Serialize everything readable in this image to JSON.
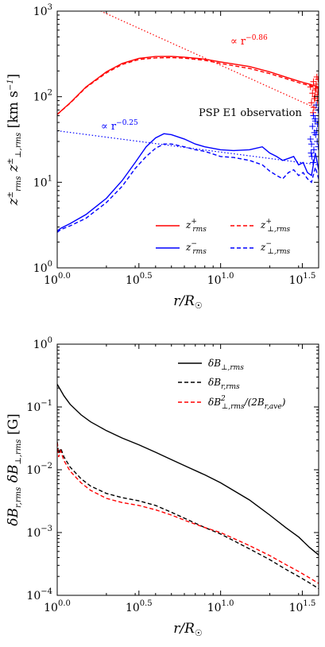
{
  "chart_data": [
    {
      "type": "line",
      "xscale": "log",
      "yscale": "log",
      "xlim": [
        1.0,
        39.8
      ],
      "ylim": [
        1,
        1000
      ],
      "xticks": [
        {
          "value": 1.0,
          "label": "10^0.0"
        },
        {
          "value": 3.162,
          "label": "10^0.5"
        },
        {
          "value": 10.0,
          "label": "10^1.0"
        },
        {
          "value": 31.62,
          "label": "10^1.5"
        }
      ],
      "yticks": [
        {
          "value": 1,
          "label": "10^0"
        },
        {
          "value": 10,
          "label": "10^1"
        },
        {
          "value": 100,
          "label": "10^2"
        },
        {
          "value": 1000,
          "label": "10^3"
        }
      ],
      "xlabel": "r/R☉",
      "ylabel": "z±rms  z±⊥,rms [km s⁻¹]",
      "annotations": [
        {
          "text": "∝ r^−0.86",
          "color": "#ff0000"
        },
        {
          "text": "∝ r^−0.25",
          "color": "#0000ff"
        },
        {
          "text": "PSP E1 observation",
          "color": "#000000"
        }
      ],
      "legend": {
        "placement": "lower-right",
        "entries": [
          {
            "label": "z+rms",
            "color": "#ff0000",
            "style": "solid"
          },
          {
            "label": "z−rms",
            "color": "#0000ff",
            "style": "solid"
          },
          {
            "label": "z+⊥,rms",
            "color": "#ff0000",
            "style": "dashed"
          },
          {
            "label": "z−⊥,rms",
            "color": "#0000ff",
            "style": "dashed"
          }
        ]
      },
      "series": [
        {
          "key": "zp_rms",
          "color": "#ff0000",
          "style": "solid",
          "x": [
            1.0,
            1.2,
            1.5,
            2.0,
            2.5,
            3.16,
            4.0,
            5.0,
            6.0,
            8.0,
            10.0,
            15.0,
            20.0,
            25.0,
            30.0,
            35.0,
            39.8
          ],
          "y": [
            62,
            85,
            130,
            195,
            245,
            280,
            295,
            296,
            290,
            275,
            255,
            225,
            195,
            170,
            152,
            140,
            130
          ]
        },
        {
          "key": "zp_perp_rms",
          "color": "#ff0000",
          "style": "dashed",
          "x": [
            1.0,
            1.2,
            1.5,
            2.0,
            2.5,
            3.16,
            4.0,
            5.0,
            6.0,
            8.0,
            10.0,
            15.0,
            20.0,
            25.0,
            30.0,
            35.0,
            39.8
          ],
          "y": [
            62,
            84,
            128,
            190,
            238,
            272,
            284,
            286,
            282,
            266,
            245,
            214,
            186,
            163,
            146,
            135,
            126
          ]
        },
        {
          "key": "zm_rms",
          "color": "#0000ff",
          "style": "solid",
          "x": [
            1.0,
            1.05,
            1.2,
            1.5,
            2.0,
            2.5,
            3.0,
            3.5,
            4.0,
            4.5,
            5.0,
            6.0,
            7.0,
            8.0,
            10.0,
            12.0,
            15.0,
            18.0,
            20.0,
            22.0,
            24.0,
            26.0,
            28.0,
            30.0,
            32.0,
            34.0,
            36.0,
            38.0,
            39.8
          ],
          "y": [
            2.7,
            2.9,
            3.3,
            4.2,
            6.5,
            10.5,
            17.0,
            26.0,
            33.0,
            37.0,
            36.0,
            32.0,
            28.0,
            26.0,
            24.0,
            23.5,
            24.0,
            26.0,
            22.0,
            20.0,
            18.0,
            19.0,
            20.0,
            16.0,
            17.0,
            13.0,
            12.0,
            22.0,
            14.0
          ]
        },
        {
          "key": "zm_perp_rms",
          "color": "#0000ff",
          "style": "dashed",
          "x": [
            1.0,
            1.05,
            1.2,
            1.5,
            2.0,
            2.5,
            3.0,
            3.5,
            4.0,
            4.5,
            5.0,
            6.0,
            7.0,
            8.0,
            10.0,
            12.0,
            15.0,
            18.0,
            20.0,
            22.0,
            24.0,
            26.0,
            28.0,
            30.0,
            32.0,
            34.0,
            36.0,
            38.0,
            39.8
          ],
          "y": [
            2.6,
            2.8,
            3.1,
            3.8,
            5.8,
            9.0,
            14.5,
            20.0,
            25.0,
            28.0,
            28.0,
            26.0,
            24.0,
            23.0,
            20.0,
            19.5,
            18.0,
            16.0,
            13.5,
            12.0,
            11.0,
            13.0,
            14.0,
            12.0,
            13.0,
            11.0,
            10.0,
            15.0,
            11.0
          ]
        },
        {
          "key": "fit_plus",
          "color": "#ff0000",
          "style": "dotted",
          "x": [
            1.0,
            39.8
          ],
          "y": [
            1700,
            71
          ]
        },
        {
          "key": "fit_minus",
          "color": "#0000ff",
          "style": "dotted",
          "x": [
            1.0,
            39.8
          ],
          "y": [
            40,
            16
          ]
        }
      ],
      "observations": [
        {
          "color": "#ff0000",
          "marker": "+",
          "x": [
            35.5,
            36.5,
            37.0,
            37.5,
            38.0,
            38.5,
            39.0,
            39.5,
            36.0,
            37.2,
            38.2,
            39.2,
            38.8,
            37.8,
            36.8,
            39.6
          ],
          "y": [
            130,
            110,
            150,
            95,
            120,
            140,
            105,
            160,
            85,
            75,
            125,
            90,
            170,
            100,
            65,
            115
          ]
        },
        {
          "color": "#0000ff",
          "marker": "+",
          "x": [
            35.5,
            36.0,
            36.5,
            37.0,
            37.5,
            38.0,
            38.5,
            39.0,
            39.5,
            36.2,
            37.2,
            38.2,
            39.2,
            36.8,
            37.8,
            38.8,
            39.6,
            35.8
          ],
          "y": [
            32,
            28,
            45,
            60,
            38,
            52,
            80,
            30,
            70,
            20,
            24,
            36,
            48,
            17,
            55,
            40,
            26,
            22
          ]
        }
      ]
    },
    {
      "type": "line",
      "xscale": "log",
      "yscale": "log",
      "xlim": [
        1.0,
        39.8
      ],
      "ylim": [
        0.0001,
        1
      ],
      "xticks": [
        {
          "value": 1.0,
          "label": "10^0.0"
        },
        {
          "value": 3.162,
          "label": "10^0.5"
        },
        {
          "value": 10.0,
          "label": "10^1.0"
        },
        {
          "value": 31.62,
          "label": "10^1.5"
        }
      ],
      "yticks": [
        {
          "value": 0.0001,
          "label": "10^−4"
        },
        {
          "value": 0.001,
          "label": "10^−3"
        },
        {
          "value": 0.01,
          "label": "10^−2"
        },
        {
          "value": 0.1,
          "label": "10^−1"
        },
        {
          "value": 1,
          "label": "10^0"
        }
      ],
      "xlabel": "r/R☉",
      "ylabel": "δBr,rms  δB⊥,rms [G]",
      "legend": {
        "placement": "top-right",
        "entries": [
          {
            "label": "δB⊥,rms",
            "color": "#000000",
            "style": "solid"
          },
          {
            "label": "δBr,rms",
            "color": "#000000",
            "style": "dashed"
          },
          {
            "label": "δB²⊥,rms/(2Br,ave)",
            "color": "#ff0000",
            "style": "dashed"
          }
        ]
      },
      "series": [
        {
          "key": "dB_perp",
          "color": "#000000",
          "style": "solid",
          "x": [
            1.0,
            1.1,
            1.2,
            1.4,
            1.6,
            2.0,
            2.5,
            3.16,
            4.0,
            5.0,
            6.3,
            8.0,
            10.0,
            15.0,
            20.0,
            25.0,
            30.0,
            35.0,
            39.8
          ],
          "y": [
            0.23,
            0.15,
            0.11,
            0.075,
            0.058,
            0.042,
            0.032,
            0.025,
            0.019,
            0.0145,
            0.011,
            0.0083,
            0.0062,
            0.0033,
            0.0019,
            0.0012,
            0.00085,
            0.00058,
            0.00044
          ]
        },
        {
          "key": "dB_r",
          "color": "#000000",
          "style": "dashed",
          "x": [
            1.0,
            1.02,
            1.05,
            1.1,
            1.2,
            1.4,
            1.6,
            2.0,
            2.5,
            3.16,
            4.0,
            5.0,
            6.3,
            8.0,
            10.0,
            15.0,
            20.0,
            25.0,
            30.0,
            35.0,
            39.8
          ],
          "y": [
            0.028,
            0.018,
            0.022,
            0.016,
            0.011,
            0.0072,
            0.0055,
            0.0042,
            0.0036,
            0.0032,
            0.0027,
            0.0021,
            0.0016,
            0.0012,
            0.00095,
            0.00055,
            0.00037,
            0.00026,
            0.0002,
            0.000158,
            0.000128
          ]
        },
        {
          "key": "dB2_perp_over_Br",
          "color": "#ff0000",
          "style": "dashed",
          "x": [
            1.0,
            1.02,
            1.05,
            1.1,
            1.2,
            1.4,
            1.6,
            2.0,
            2.5,
            3.16,
            4.0,
            5.0,
            6.3,
            8.0,
            10.0,
            15.0,
            20.0,
            25.0,
            30.0,
            35.0,
            39.8
          ],
          "y": [
            0.027,
            0.016,
            0.02,
            0.014,
            0.0095,
            0.0062,
            0.0047,
            0.0035,
            0.003,
            0.0027,
            0.0023,
            0.0019,
            0.0015,
            0.0012,
            0.001,
            0.00062,
            0.00043,
            0.00031,
            0.00024,
            0.00019,
            0.000155
          ]
        }
      ]
    }
  ]
}
